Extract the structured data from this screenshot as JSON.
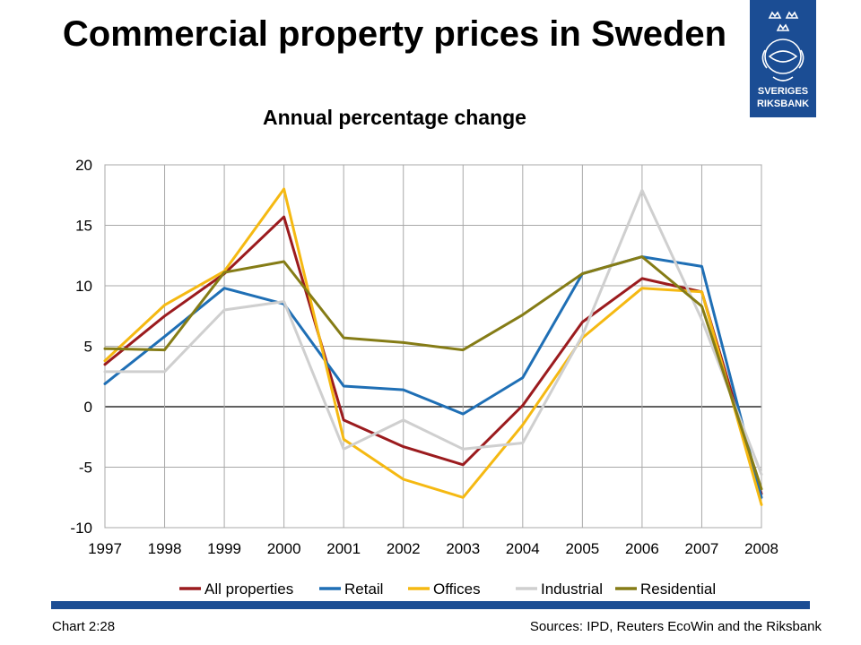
{
  "title": "Commercial property prices in Sweden",
  "subtitle": "Annual percentage change",
  "logo": {
    "text_line1": "SVERIGES",
    "text_line2": "RIKSBANK"
  },
  "footer": {
    "chart_id": "Chart 2:28",
    "sources": "Sources: IPD, Reuters EcoWin and the Riksbank"
  },
  "colors": {
    "brand": "#1b4d94",
    "All properties": "#9b1b1e",
    "Retail": "#1f6fb5",
    "Offices": "#f5b912",
    "Industrial": "#cfcfcf",
    "Residential": "#857c16"
  },
  "chart_data": {
    "type": "line",
    "title": "Commercial property prices in Sweden",
    "subtitle": "Annual percentage change",
    "x": [
      "1997",
      "1998",
      "1999",
      "2000",
      "2001",
      "2002",
      "2003",
      "2004",
      "2005",
      "2006",
      "2007",
      "2008"
    ],
    "ylim": [
      -10,
      20
    ],
    "yticks": [
      20,
      15,
      10,
      5,
      0,
      -5,
      -10
    ],
    "grid": true,
    "legend_position": "bottom",
    "series": [
      {
        "name": "All properties",
        "values": [
          3.5,
          7.5,
          11.0,
          15.7,
          -1.1,
          -3.3,
          -4.8,
          0.1,
          7.0,
          10.6,
          9.5,
          -7.2
        ]
      },
      {
        "name": "Retail",
        "values": [
          1.9,
          5.8,
          9.8,
          8.5,
          1.7,
          1.4,
          -0.6,
          2.4,
          11.0,
          12.4,
          11.6,
          -7.5
        ]
      },
      {
        "name": "Offices",
        "values": [
          3.8,
          8.4,
          11.2,
          18.0,
          -2.7,
          -6.0,
          -7.5,
          -1.5,
          5.7,
          9.8,
          9.5,
          -8.1
        ]
      },
      {
        "name": "Industrial",
        "values": [
          2.9,
          2.9,
          8.0,
          8.7,
          -3.5,
          -1.1,
          -3.5,
          -3.0,
          5.9,
          17.9,
          7.2,
          -5.6
        ]
      },
      {
        "name": "Residential",
        "values": [
          4.8,
          4.7,
          11.1,
          12.0,
          5.7,
          5.3,
          4.7,
          7.6,
          11.0,
          12.4,
          8.3,
          -6.8
        ]
      }
    ]
  }
}
